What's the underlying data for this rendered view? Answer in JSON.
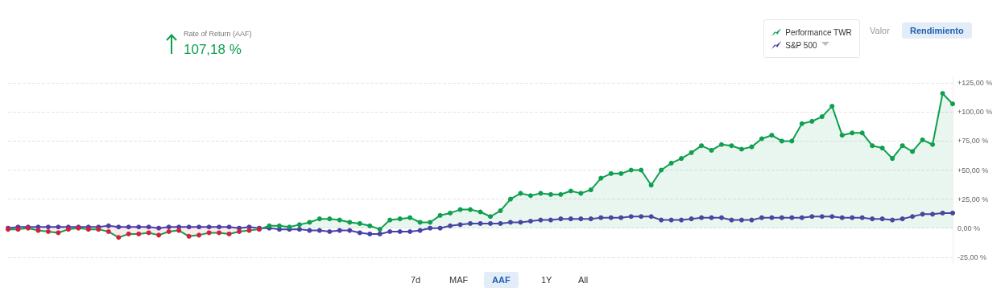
{
  "chart_data": {
    "type": "line",
    "categories": [
      null,
      null,
      null,
      null,
      null,
      null,
      null,
      null,
      null,
      null,
      null,
      null,
      null,
      null,
      null,
      null,
      null,
      null,
      null,
      null,
      null,
      null,
      null,
      null,
      null,
      null,
      null,
      null,
      null,
      null,
      null,
      null,
      null,
      null,
      null,
      null,
      null,
      null,
      null,
      null,
      null,
      null,
      null,
      null,
      null,
      null,
      null,
      null,
      null,
      null,
      null,
      null,
      null,
      null,
      null,
      null,
      null,
      null,
      null,
      null,
      null,
      null,
      null,
      null,
      null,
      null,
      null,
      null,
      null,
      null,
      null,
      null,
      null,
      null,
      null,
      null,
      null,
      null,
      null,
      null,
      null,
      null,
      null,
      null,
      null,
      null,
      null,
      null,
      null,
      null,
      null,
      null,
      null,
      null,
      null
    ],
    "series": [
      {
        "name": "Performance TWR",
        "type": "area",
        "color": "#0e9f4f",
        "colors": [
          "#d81e3a",
          "#d81e3a",
          "#d81e3a",
          "#d81e3a",
          "#d81e3a",
          "#d81e3a",
          "#d81e3a",
          "#d81e3a",
          "#d81e3a",
          "#d81e3a",
          "#d81e3a",
          "#d81e3a",
          "#d81e3a",
          "#d81e3a",
          "#d81e3a",
          "#d81e3a",
          "#d81e3a",
          "#d81e3a",
          "#d81e3a",
          "#d81e3a",
          "#d81e3a",
          "#d81e3a",
          "#d81e3a",
          "#d81e3a",
          "#d81e3a",
          "#d81e3a",
          "#0e9f4f",
          "#0e9f4f",
          "#0e9f4f",
          "#0e9f4f",
          "#0e9f4f",
          "#0e9f4f",
          "#0e9f4f",
          "#0e9f4f",
          "#0e9f4f",
          "#0e9f4f",
          "#0e9f4f",
          "#0e9f4f",
          "#0e9f4f",
          "#0e9f4f",
          "#0e9f4f",
          "#0e9f4f",
          "#0e9f4f",
          "#0e9f4f",
          "#0e9f4f",
          "#0e9f4f",
          "#0e9f4f",
          "#0e9f4f",
          "#0e9f4f",
          "#0e9f4f",
          "#0e9f4f",
          "#0e9f4f",
          "#0e9f4f",
          "#0e9f4f",
          "#0e9f4f",
          "#0e9f4f",
          "#0e9f4f",
          "#0e9f4f",
          "#0e9f4f",
          "#0e9f4f",
          "#0e9f4f",
          "#0e9f4f",
          "#0e9f4f",
          "#0e9f4f",
          "#0e9f4f",
          "#0e9f4f",
          "#0e9f4f",
          "#0e9f4f",
          "#0e9f4f",
          "#0e9f4f",
          "#0e9f4f",
          "#0e9f4f",
          "#0e9f4f",
          "#0e9f4f",
          "#0e9f4f",
          "#0e9f4f",
          "#0e9f4f",
          "#0e9f4f",
          "#0e9f4f",
          "#0e9f4f",
          "#0e9f4f",
          "#0e9f4f",
          "#0e9f4f",
          "#0e9f4f",
          "#0e9f4f",
          "#0e9f4f",
          "#0e9f4f",
          "#0e9f4f",
          "#0e9f4f",
          "#0e9f4f",
          "#0e9f4f",
          "#0e9f4f",
          "#0e9f4f",
          "#0e9f4f",
          "#0e9f4f"
        ],
        "values": [
          -1,
          -1,
          0,
          -2,
          -3,
          -4,
          -1,
          0,
          -1,
          -1,
          -3,
          -8,
          -5,
          -5,
          -4,
          -6,
          -3,
          -2,
          -7,
          -6,
          -4,
          -4,
          -5,
          -3,
          -2,
          -1,
          2,
          2,
          1,
          3,
          5,
          8,
          8,
          7,
          5,
          4,
          2,
          -1,
          7,
          8,
          9,
          5,
          5,
          11,
          13,
          16,
          16,
          14,
          10,
          15,
          25,
          30,
          28,
          30,
          29,
          29,
          32,
          30,
          33,
          43,
          47,
          47,
          50,
          50,
          37,
          50,
          56,
          60,
          65,
          71,
          67,
          72,
          71,
          68,
          70,
          77,
          80,
          75,
          75,
          90,
          92,
          96,
          105,
          80,
          82,
          82,
          71,
          69,
          60,
          71,
          66,
          76,
          72,
          116,
          107
        ]
      },
      {
        "name": "S&P 500",
        "type": "line",
        "color": "#4b3fa8",
        "values": [
          0,
          1,
          1,
          1,
          1,
          1,
          1,
          1,
          1,
          1,
          2,
          1,
          1,
          1,
          1,
          0,
          1,
          1,
          1,
          1,
          1,
          1,
          1,
          0,
          1,
          0,
          0,
          -1,
          -1,
          -1,
          -2,
          -2,
          -3,
          -2,
          -2,
          -4,
          -5,
          -5,
          -3,
          -3,
          -3,
          -2,
          0,
          0,
          2,
          3,
          4,
          4,
          4,
          4,
          5,
          5,
          6,
          7,
          7,
          8,
          8,
          8,
          8,
          9,
          9,
          9,
          10,
          10,
          10,
          7,
          7,
          7,
          8,
          9,
          9,
          9,
          7,
          7,
          7,
          9,
          9,
          9,
          9,
          9,
          10,
          10,
          10,
          9,
          9,
          9,
          8,
          8,
          7,
          8,
          10,
          12,
          12,
          13,
          13
        ]
      }
    ],
    "ylim": [
      -30,
      130
    ],
    "yticks": [
      {
        "value": -25,
        "label": "-25,00 %"
      },
      {
        "value": 0,
        "label": "0,00 %"
      },
      {
        "value": 25,
        "label": "+25,00 %"
      },
      {
        "value": 50,
        "label": "+50,00 %"
      },
      {
        "value": 75,
        "label": "+75,00 %"
      },
      {
        "value": 100,
        "label": "+100,00 %"
      },
      {
        "value": 125,
        "label": "+125,00 %"
      }
    ],
    "grid": "y",
    "legend": "top right",
    "marker": "circle",
    "line_style": "solid",
    "annotations": [
      "Rate of Return (AAF)",
      "107,18 %",
      "Valor",
      "Rendimiento",
      "7d",
      "MAF",
      "AAF",
      "1Y",
      "All"
    ]
  }
}
